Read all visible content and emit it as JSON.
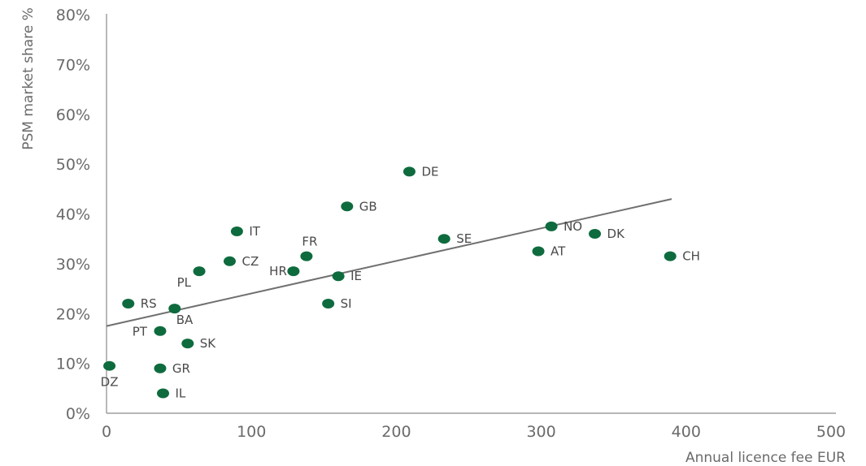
{
  "chart_data": {
    "type": "scatter",
    "xlabel": "Annual licence fee EUR",
    "ylabel": "PSM market share %",
    "xlim": [
      0,
      500
    ],
    "ylim": [
      0,
      80
    ],
    "x_ticks": [
      "0",
      "100",
      "200",
      "300",
      "400",
      "500"
    ],
    "y_ticks": [
      "0%",
      "10%",
      "20%",
      "30%",
      "40%",
      "50%",
      "60%",
      "70%",
      "80%"
    ],
    "grid": false,
    "point_color": "#0e6b3e",
    "trend_color": "#707070",
    "trendline": {
      "x": [
        0,
        390
      ],
      "y": [
        17.5,
        43
      ]
    },
    "points": [
      {
        "label": "DZ",
        "x": 2,
        "y": 9.5
      },
      {
        "label": "RS",
        "x": 15,
        "y": 22
      },
      {
        "label": "PT",
        "x": 37,
        "y": 16.5
      },
      {
        "label": "GR",
        "x": 37,
        "y": 9
      },
      {
        "label": "IL",
        "x": 39,
        "y": 4
      },
      {
        "label": "BA",
        "x": 47,
        "y": 21
      },
      {
        "label": "SK",
        "x": 56,
        "y": 14
      },
      {
        "label": "PL",
        "x": 64,
        "y": 28.5
      },
      {
        "label": "CZ",
        "x": 85,
        "y": 30.5
      },
      {
        "label": "IT",
        "x": 90,
        "y": 36.5
      },
      {
        "label": "HR",
        "x": 129,
        "y": 28.5
      },
      {
        "label": "FR",
        "x": 138,
        "y": 31.5
      },
      {
        "label": "SI",
        "x": 153,
        "y": 22
      },
      {
        "label": "IE",
        "x": 160,
        "y": 27.5
      },
      {
        "label": "GB",
        "x": 166,
        "y": 41.5
      },
      {
        "label": "DE",
        "x": 209,
        "y": 48.5
      },
      {
        "label": "SE",
        "x": 233,
        "y": 35
      },
      {
        "label": "AT",
        "x": 298,
        "y": 32.5
      },
      {
        "label": "NO",
        "x": 307,
        "y": 37.5
      },
      {
        "label": "DK",
        "x": 337,
        "y": 36
      },
      {
        "label": "CH",
        "x": 389,
        "y": 31.5
      }
    ]
  }
}
